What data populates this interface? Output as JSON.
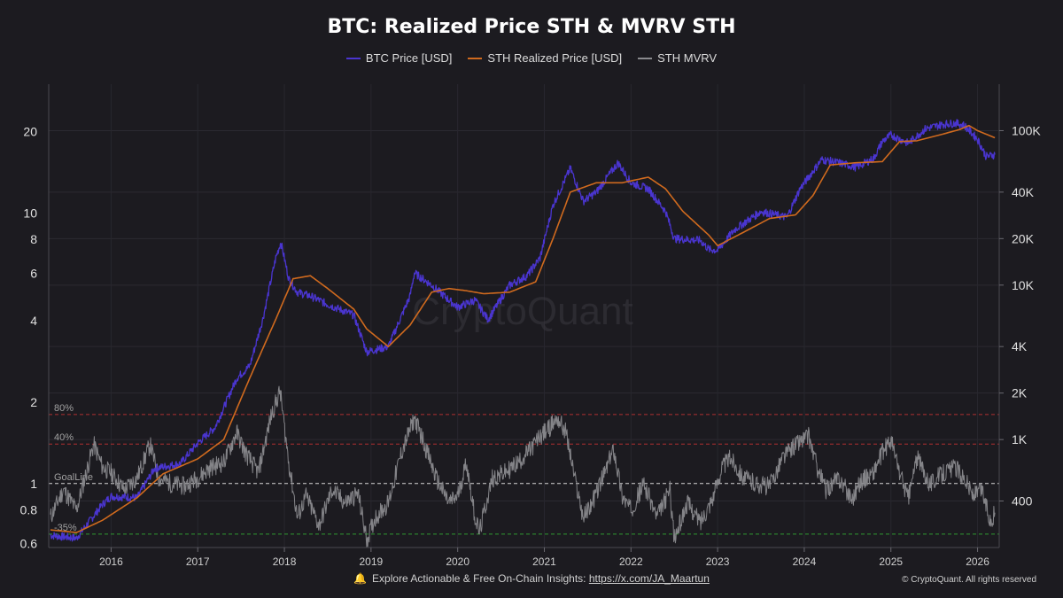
{
  "chart_data": {
    "type": "line",
    "title": "BTC: Realized Price STH & MVRV STH",
    "legend": [
      {
        "name": "BTC Price [USD]",
        "color": "#4a35d0"
      },
      {
        "name": "STH Realized Price [USD]",
        "color": "#d06a1e"
      },
      {
        "name": "STH MVRV",
        "color": "#8a8a8e"
      }
    ],
    "x_ticks": [
      "2016",
      "2017",
      "2018",
      "2019",
      "2020",
      "2021",
      "2022",
      "2023",
      "2024",
      "2025",
      "2026"
    ],
    "x_range": [
      2015.28,
      2026.25
    ],
    "left_axis": {
      "scale": "log",
      "range": [
        0.58,
        30
      ],
      "ticks": [
        {
          "value": 0.6,
          "label": "0.6"
        },
        {
          "value": 0.8,
          "label": "0.8"
        },
        {
          "value": 1,
          "label": "1"
        },
        {
          "value": 2,
          "label": "2"
        },
        {
          "value": 4,
          "label": "4"
        },
        {
          "value": 6,
          "label": "6"
        },
        {
          "value": 8,
          "label": "8"
        },
        {
          "value": 10,
          "label": "10"
        },
        {
          "value": 20,
          "label": "20"
        }
      ]
    },
    "right_axis": {
      "scale": "log",
      "range": [
        200,
        200000
      ],
      "ticks": [
        {
          "value": 400,
          "label": "400"
        },
        {
          "value": 1000,
          "label": "1K"
        },
        {
          "value": 2000,
          "label": "2K"
        },
        {
          "value": 4000,
          "label": "4K"
        },
        {
          "value": 10000,
          "label": "10K"
        },
        {
          "value": 20000,
          "label": "20K"
        },
        {
          "value": 40000,
          "label": "40K"
        },
        {
          "value": 100000,
          "label": "100K"
        }
      ]
    },
    "reference_lines": [
      {
        "label": "80%",
        "value": 1.8,
        "color": "#b03030",
        "style": "dashed"
      },
      {
        "label": "40%",
        "value": 1.4,
        "color": "#b03030",
        "style": "dashed"
      },
      {
        "label": "GoalLine",
        "value": 1.0,
        "color": "#d8d8d8",
        "style": "dashed"
      },
      {
        "label": "-35%",
        "value": 0.65,
        "color": "#2f9a30",
        "style": "dashed"
      }
    ],
    "series": [
      {
        "name": "BTC Price [USD]",
        "axis": "right",
        "x": [
          2015.3,
          2015.6,
          2015.9,
          2016.0,
          2016.3,
          2016.5,
          2016.8,
          2017.0,
          2017.2,
          2017.45,
          2017.6,
          2017.75,
          2017.9,
          2017.96,
          2018.05,
          2018.15,
          2018.3,
          2018.5,
          2018.8,
          2018.95,
          2019.2,
          2019.45,
          2019.5,
          2019.7,
          2019.9,
          2020.0,
          2020.2,
          2020.35,
          2020.6,
          2020.8,
          2020.95,
          2021.1,
          2021.3,
          2021.45,
          2021.6,
          2021.85,
          2022.0,
          2022.2,
          2022.4,
          2022.5,
          2022.8,
          2022.9,
          2023.0,
          2023.2,
          2023.5,
          2023.8,
          2023.95,
          2024.2,
          2024.4,
          2024.6,
          2024.8,
          2024.9,
          2025.0,
          2025.2,
          2025.4,
          2025.6,
          2025.75,
          2025.85,
          2026.0,
          2026.1,
          2026.2
        ],
        "values": [
          240,
          230,
          380,
          430,
          420,
          650,
          700,
          950,
          1200,
          2500,
          3000,
          6000,
          15000,
          19000,
          11000,
          9000,
          8500,
          7500,
          6400,
          3700,
          4000,
          8500,
          12000,
          10000,
          8000,
          7200,
          8000,
          6000,
          10000,
          11500,
          15000,
          33000,
          57000,
          35000,
          40000,
          62000,
          46000,
          42000,
          30000,
          20000,
          19500,
          17000,
          16800,
          23000,
          30000,
          27500,
          42000,
          65000,
          62000,
          58000,
          66000,
          85000,
          94000,
          83000,
          103000,
          110000,
          112000,
          108000,
          88000,
          68000,
          70000
        ]
      },
      {
        "name": "STH Realized Price [USD]",
        "axis": "right",
        "x": [
          2015.3,
          2015.6,
          2015.9,
          2016.3,
          2016.6,
          2017.0,
          2017.3,
          2017.6,
          2017.9,
          2018.1,
          2018.3,
          2018.5,
          2018.8,
          2018.95,
          2019.2,
          2019.45,
          2019.7,
          2019.9,
          2020.1,
          2020.3,
          2020.6,
          2020.9,
          2021.1,
          2021.3,
          2021.6,
          2021.9,
          2022.2,
          2022.4,
          2022.6,
          2022.9,
          2023.0,
          2023.3,
          2023.6,
          2023.9,
          2024.1,
          2024.3,
          2024.6,
          2024.9,
          2025.1,
          2025.3,
          2025.6,
          2025.8,
          2025.9,
          2026.0,
          2026.2
        ],
        "values": [
          260,
          250,
          300,
          420,
          600,
          750,
          1000,
          2500,
          6000,
          11000,
          11500,
          9500,
          7000,
          5200,
          4000,
          5500,
          9000,
          9500,
          9200,
          8800,
          9000,
          10500,
          20000,
          40000,
          46000,
          46000,
          50000,
          42000,
          30000,
          21000,
          18000,
          22000,
          27000,
          28500,
          38000,
          60000,
          62000,
          63000,
          85000,
          86000,
          95000,
          102000,
          108000,
          100000,
          90000
        ]
      },
      {
        "name": "STH MVRV",
        "axis": "left",
        "x": [
          2015.3,
          2015.45,
          2015.6,
          2015.8,
          2015.9,
          2016.0,
          2016.15,
          2016.3,
          2016.45,
          2016.55,
          2016.7,
          2016.85,
          2017.0,
          2017.15,
          2017.3,
          2017.45,
          2017.55,
          2017.7,
          2017.85,
          2017.95,
          2018.05,
          2018.15,
          2018.25,
          2018.4,
          2018.55,
          2018.7,
          2018.85,
          2018.95,
          2019.05,
          2019.2,
          2019.35,
          2019.5,
          2019.6,
          2019.75,
          2019.9,
          2020.0,
          2020.1,
          2020.2,
          2020.25,
          2020.4,
          2020.55,
          2020.7,
          2020.85,
          2020.95,
          2021.05,
          2021.15,
          2021.25,
          2021.35,
          2021.45,
          2021.55,
          2021.7,
          2021.8,
          2021.9,
          2022.0,
          2022.15,
          2022.3,
          2022.45,
          2022.5,
          2022.65,
          2022.8,
          2022.95,
          2023.05,
          2023.15,
          2023.3,
          2023.45,
          2023.6,
          2023.75,
          2023.9,
          2024.05,
          2024.15,
          2024.25,
          2024.4,
          2024.55,
          2024.65,
          2024.8,
          2024.9,
          2025.0,
          2025.1,
          2025.2,
          2025.3,
          2025.45,
          2025.6,
          2025.75,
          2025.85,
          2025.95,
          2026.05,
          2026.15,
          2026.2
        ],
        "values": [
          0.75,
          0.95,
          0.8,
          1.4,
          1.15,
          1.1,
          0.95,
          1.05,
          1.4,
          1.05,
          1.0,
          0.98,
          1.05,
          1.15,
          1.2,
          1.55,
          1.3,
          1.1,
          1.8,
          2.2,
          1.2,
          0.75,
          0.9,
          0.7,
          0.95,
          0.85,
          0.92,
          0.62,
          0.75,
          0.85,
          1.3,
          1.75,
          1.45,
          1.05,
          0.85,
          0.9,
          1.2,
          0.75,
          0.66,
          1.05,
          1.1,
          1.2,
          1.35,
          1.5,
          1.6,
          1.75,
          1.55,
          1.05,
          0.75,
          0.85,
          1.1,
          1.35,
          0.9,
          0.8,
          1.0,
          0.75,
          0.95,
          0.62,
          0.85,
          0.72,
          0.9,
          1.15,
          1.25,
          1.05,
          1.0,
          0.98,
          1.25,
          1.4,
          1.5,
          1.15,
          0.95,
          1.05,
          0.88,
          1.02,
          1.1,
          1.3,
          1.45,
          1.1,
          0.88,
          1.25,
          1.0,
          1.1,
          1.15,
          1.05,
          0.9,
          0.95,
          0.72,
          0.78
        ]
      }
    ],
    "grid": true,
    "watermark": "CryptoQuant",
    "footer": {
      "note_text": "Explore Actionable & Free On-Chain Insights: ",
      "link_text": "https://x.com/JA_Maartun",
      "copyright": "© CryptoQuant. All rights reserved"
    }
  }
}
